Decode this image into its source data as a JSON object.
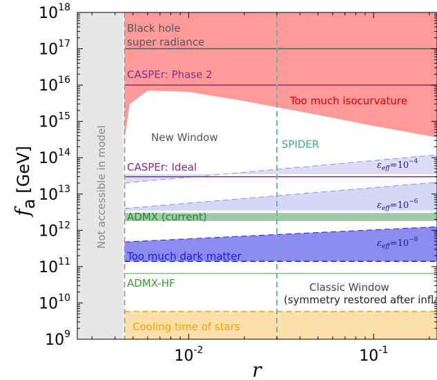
{
  "chart_data": {
    "type": "area",
    "xscale": "log",
    "yscale": "log",
    "xlim": [
      0.0025,
      0.22
    ],
    "ylim": [
      1000000000.0,
      1e+18
    ],
    "xlabel": "r",
    "ylabel_symbol": "f",
    "ylabel_sub": "a",
    "ylabel_unit": "[GeV]",
    "x_ticks": [
      {
        "value": 0.01,
        "base": "10",
        "exp": "-2"
      },
      {
        "value": 0.1,
        "base": "10",
        "exp": "-1"
      }
    ],
    "y_ticks": [
      {
        "value": 1000000000.0,
        "base": "10",
        "exp": "9"
      },
      {
        "value": 10000000000.0,
        "base": "10",
        "exp": "10"
      },
      {
        "value": 100000000000.0,
        "base": "10",
        "exp": "11"
      },
      {
        "value": 1000000000000.0,
        "base": "10",
        "exp": "12"
      },
      {
        "value": 10000000000000.0,
        "base": "10",
        "exp": "13"
      },
      {
        "value": 100000000000000.0,
        "base": "10",
        "exp": "14"
      },
      {
        "value": 1000000000000000.0,
        "base": "10",
        "exp": "15"
      },
      {
        "value": 1e+16,
        "base": "10",
        "exp": "16"
      },
      {
        "value": 1e+17,
        "base": "10",
        "exp": "17"
      },
      {
        "value": 1e+18,
        "base": "10",
        "exp": "18"
      }
    ],
    "r_min_model": 0.0045,
    "spider_r": 0.03,
    "isocurvature_boundary": [
      {
        "r": 0.0045,
        "fa": 320000000000000.0
      },
      {
        "r": 0.0048,
        "fa": 3000000000000000.0
      },
      {
        "r": 0.006,
        "fa": 7000000000000000.0
      },
      {
        "r": 0.01,
        "fa": 6500000000000000.0
      },
      {
        "r": 0.02,
        "fa": 3600000000000000.0
      },
      {
        "r": 0.05,
        "fa": 1500000000000000.0
      },
      {
        "r": 0.1,
        "fa": 750000000000000.0
      },
      {
        "r": 0.22,
        "fa": 360000000000000.0
      }
    ],
    "eps_bands": [
      {
        "label": "10^{-4}",
        "low": [
          {
            "r": 0.0045,
            "fa": 35000000000000.0
          },
          {
            "r": 0.22,
            "fa": 35000000000000.0
          }
        ],
        "high": [
          {
            "r": 0.0045,
            "fa": 20000000000000.0
          },
          {
            "r": 0.22,
            "fa": 120000000000000.0
          }
        ],
        "color": "#dcdcf7"
      },
      {
        "label": "10^{-6}",
        "low": [
          {
            "r": 0.0045,
            "fa": 3500000000000.0
          },
          {
            "r": 0.22,
            "fa": 3500000000000.0
          }
        ],
        "high": [
          {
            "r": 0.0045,
            "fa": 4000000000000.0
          },
          {
            "r": 0.22,
            "fa": 21000000000000.0
          }
        ],
        "color": "#d6d6f6"
      },
      {
        "label": "10^{-8}",
        "low": [
          {
            "r": 0.0045,
            "fa": 140000000000.0
          },
          {
            "r": 0.22,
            "fa": 140000000000.0
          }
        ],
        "high": [
          {
            "r": 0.0045,
            "fa": 480000000000.0
          },
          {
            "r": 0.22,
            "fa": 1250000000000.0
          }
        ],
        "color": "#8c8cf0"
      }
    ],
    "horizontal_lines": [
      {
        "name": "Black hole super radiance",
        "fa": 1e+17,
        "color": "#555555",
        "style": "solid"
      },
      {
        "name": "CASPEr: Phase 2",
        "fa": 1e+16,
        "color": "#8b2a8b",
        "style": "solid"
      },
      {
        "name": "CASPEr: Ideal",
        "fa": 30000000000000.0,
        "color": "#8b2a8b",
        "style": "solid"
      },
      {
        "name": "Too much dark matter",
        "fa": 140000000000.0,
        "color": "#2020e0",
        "style": "dashed"
      },
      {
        "name": "ADMX-HF",
        "fa": 65000000000.0,
        "color": "#7fc47f",
        "style": "solid"
      },
      {
        "name": "Cooling time of stars",
        "fa": 5800000000.0,
        "color": "#f0a500",
        "style": "dashed"
      }
    ],
    "admx_band": {
      "fa_low": 1800000000000.0,
      "fa_high": 3000000000000.0,
      "color": "#9fcaa8"
    },
    "regions": [
      {
        "name": "Black hole super radiance",
        "color": "#ff9a9a"
      },
      {
        "name": "Too much isocurvature",
        "color": "#ff9a9a"
      },
      {
        "name": "Too much dark matter",
        "color": "#8c8cf0"
      },
      {
        "name": "Cooling time of stars",
        "color": "#fddfaa"
      },
      {
        "name": "Not accessible in model",
        "color": "#e6e6e6"
      }
    ]
  },
  "labels": {
    "black_hole_1": "Black hole",
    "black_hole_2": "super radiance",
    "casper_phase2": "CASPEr: Phase 2",
    "too_much_iso": "Too much isocurvature",
    "new_window": "New Window",
    "spider": "SPIDER",
    "casper_ideal": "CASPEr: Ideal",
    "admx_current": "ADMX (current)",
    "too_much_dm": "Too much dark matter",
    "admx_hf": "ADMX-HF",
    "classic_window": "Classic Window",
    "classic_window_sub": "(symmetry restored after inflation)",
    "cooling": "Cooling time of stars",
    "not_accessible": "Not accessible in model",
    "eps_prefix": "ε",
    "eps_sub": "eff",
    "eps_eq": "=10",
    "eps_exp_4": "−4",
    "eps_exp_6": "−6",
    "eps_exp_8": "−8"
  }
}
